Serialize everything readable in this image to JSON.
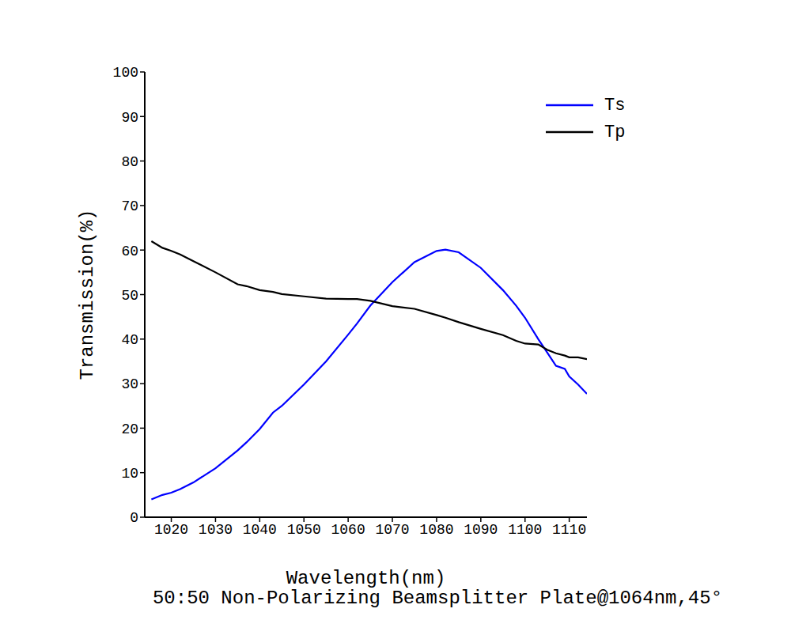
{
  "chart_data": {
    "type": "line",
    "title": "50:50 Non-Polarizing Beamsplitter Plate@1064nm,45°",
    "x_label": "Wavelength(nm)",
    "y_label": "Transmission(%)",
    "x": [
      1015.5,
      1018,
      1020,
      1022,
      1025,
      1030,
      1035,
      1037,
      1040,
      1043,
      1045,
      1050,
      1055,
      1060,
      1062,
      1065,
      1070,
      1075,
      1080,
      1082,
      1085,
      1090,
      1095,
      1098,
      1100,
      1103,
      1105,
      1107,
      1109,
      1110,
      1112,
      1114
    ],
    "series": [
      {
        "name": "Ts",
        "color": "#0000ff",
        "values": [
          4,
          5,
          5.5,
          6.3,
          7.8,
          11,
          15,
          16.8,
          19.8,
          23.5,
          25,
          29.8,
          35,
          41,
          43.5,
          47.5,
          52.8,
          57.3,
          59.8,
          60.1,
          59.5,
          56,
          51,
          47.5,
          44.8,
          40,
          37,
          34,
          33.3,
          31.6,
          29.8,
          27.7
        ]
      },
      {
        "name": "Tp",
        "color": "#000000",
        "values": [
          62,
          60.5,
          59.8,
          59,
          57.5,
          55,
          52.3,
          51.9,
          51,
          50.6,
          50.1,
          49.6,
          49.1,
          49,
          49,
          48.6,
          47.4,
          46.8,
          45.4,
          44.8,
          43.8,
          42.3,
          40.9,
          39.6,
          39,
          38.8,
          37.6,
          36.8,
          36.3,
          35.9,
          35.9,
          35.5
        ]
      }
    ],
    "xlim": [
      1014,
      1114
    ],
    "xticks": [
      1020,
      1030,
      1040,
      1050,
      1060,
      1070,
      1080,
      1090,
      1100,
      1110
    ],
    "ylim": [
      0,
      100
    ],
    "yticks": [
      0,
      10,
      20,
      30,
      40,
      50,
      60,
      70,
      80,
      90,
      100
    ],
    "grid": false,
    "legend": "upper right"
  }
}
